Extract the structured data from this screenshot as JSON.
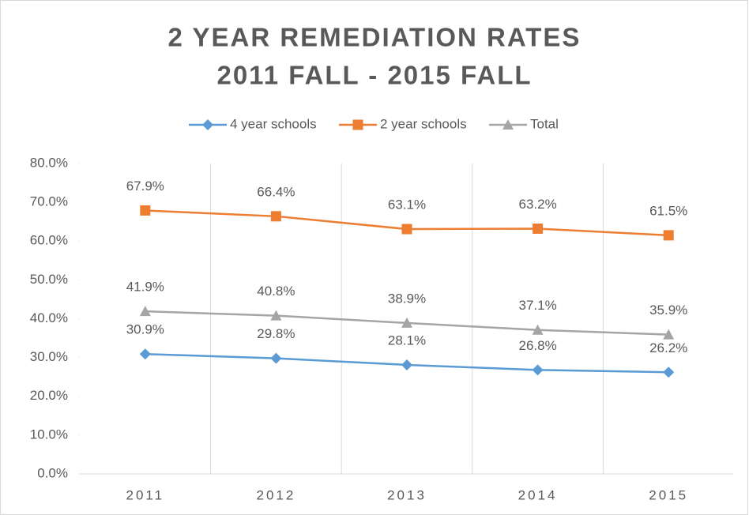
{
  "chart_data": {
    "type": "line",
    "title": "2 YEAR REMEDIATION RATES",
    "subtitle": "2011 FALL - 2015 FALL",
    "categories": [
      "2011",
      "2012",
      "2013",
      "2014",
      "2015"
    ],
    "series": [
      {
        "name": "4 year schools",
        "color": "#5b9bd5",
        "marker": "diamond",
        "values": [
          30.9,
          29.8,
          28.1,
          26.8,
          26.2
        ],
        "value_labels": [
          "30.9%",
          "29.8%",
          "28.1%",
          "26.8%",
          "26.2%"
        ]
      },
      {
        "name": "2 year schools",
        "color": "#ed7d31",
        "marker": "square",
        "values": [
          67.9,
          66.4,
          63.1,
          63.2,
          61.5
        ],
        "value_labels": [
          "67.9%",
          "66.4%",
          "63.1%",
          "63.2%",
          "61.5%"
        ]
      },
      {
        "name": "Total",
        "color": "#a5a5a5",
        "marker": "triangle",
        "values": [
          41.9,
          40.8,
          38.9,
          37.1,
          35.9
        ],
        "value_labels": [
          "41.9%",
          "40.8%",
          "38.9%",
          "37.1%",
          "35.9%"
        ]
      }
    ],
    "ylim": [
      0,
      80
    ],
    "yticks": [
      {
        "value": 0,
        "label": "0.0%"
      },
      {
        "value": 10,
        "label": "10.0%"
      },
      {
        "value": 20,
        "label": "20.0%"
      },
      {
        "value": 30,
        "label": "30.0%"
      },
      {
        "value": 40,
        "label": "40.0%"
      },
      {
        "value": 50,
        "label": "50.0%"
      },
      {
        "value": 60,
        "label": "60.0%"
      },
      {
        "value": 70,
        "label": "70.0%"
      },
      {
        "value": 80,
        "label": "80.0%"
      }
    ],
    "grid": "vertical",
    "legend": "top"
  }
}
